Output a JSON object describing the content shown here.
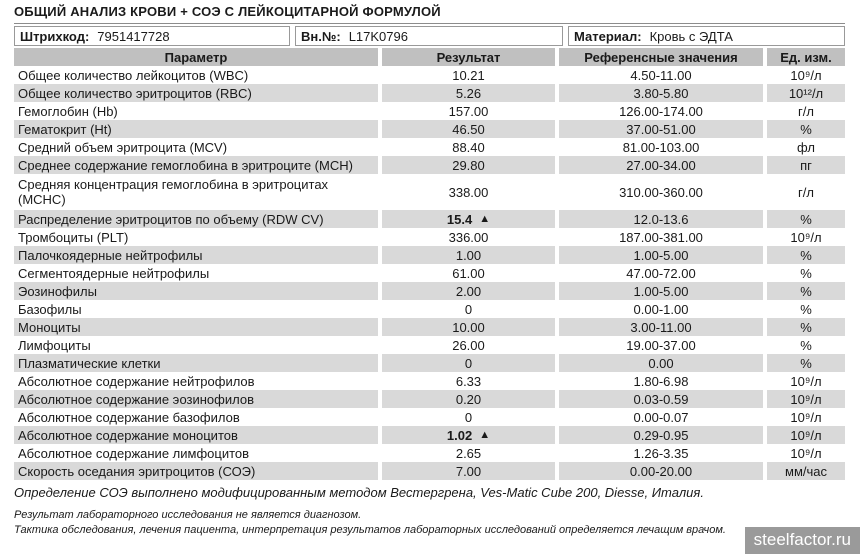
{
  "title": "ОБЩИЙ АНАЛИЗ КРОВИ + СОЭ С ЛЕЙКОЦИТАРНОЙ ФОРМУЛОЙ",
  "info": {
    "barcode_label": "Штрихкод:",
    "barcode_value": "7951417728",
    "internal_number_label": "Вн.№:",
    "internal_number_value": "L17K0796",
    "material_label": "Материал:",
    "material_value": "Кровь с ЭДТА"
  },
  "table": {
    "headers": [
      "Параметр",
      "Результат",
      "Референсные значения",
      "Ед. изм."
    ],
    "rows": [
      {
        "param": "Общее количество лейкоцитов (WBC)",
        "result": "10.21",
        "flag": "",
        "ref": "4.50-11.00",
        "unit": "10⁹/л"
      },
      {
        "param": "Общее количество эритроцитов (RBC)",
        "result": "5.26",
        "flag": "",
        "ref": "3.80-5.80",
        "unit": "10¹²/л"
      },
      {
        "param": "Гемоглобин (Hb)",
        "result": "157.00",
        "flag": "",
        "ref": "126.00-174.00",
        "unit": "г/л"
      },
      {
        "param": "Гематокрит (Ht)",
        "result": "46.50",
        "flag": "",
        "ref": "37.00-51.00",
        "unit": "%"
      },
      {
        "param": "Средний объем эритроцита (MCV)",
        "result": "88.40",
        "flag": "",
        "ref": "81.00-103.00",
        "unit": "фл"
      },
      {
        "param": "Среднее содержание гемоглобина в эритроците (MCH)",
        "result": "29.80",
        "flag": "",
        "ref": "27.00-34.00",
        "unit": "пг"
      },
      {
        "param": "Средняя концентрация гемоглобина в эритроцитах\n(MCHC)",
        "result": "338.00",
        "flag": "",
        "ref": "310.00-360.00",
        "unit": "г/л",
        "tall": true
      },
      {
        "param": "Распределение эритроцитов по объему (RDW CV)",
        "result": "15.4",
        "flag": "▲",
        "ref": "12.0-13.6",
        "unit": "%"
      },
      {
        "param": "Тромбоциты (PLT)",
        "result": "336.00",
        "flag": "",
        "ref": "187.00-381.00",
        "unit": "10⁹/л"
      },
      {
        "param": "Палочкоядерные нейтрофилы",
        "result": "1.00",
        "flag": "",
        "ref": "1.00-5.00",
        "unit": "%"
      },
      {
        "param": "Сегментоядерные нейтрофилы",
        "result": "61.00",
        "flag": "",
        "ref": "47.00-72.00",
        "unit": "%"
      },
      {
        "param": "Эозинофилы",
        "result": "2.00",
        "flag": "",
        "ref": "1.00-5.00",
        "unit": "%"
      },
      {
        "param": "Базофилы",
        "result": "0",
        "flag": "",
        "ref": "0.00-1.00",
        "unit": "%"
      },
      {
        "param": "Моноциты",
        "result": "10.00",
        "flag": "",
        "ref": "3.00-11.00",
        "unit": "%"
      },
      {
        "param": "Лимфоциты",
        "result": "26.00",
        "flag": "",
        "ref": "19.00-37.00",
        "unit": "%"
      },
      {
        "param": "Плазматические клетки",
        "result": "0",
        "flag": "",
        "ref": "0.00",
        "unit": "%"
      },
      {
        "param": "Абсолютное содержание нейтрофилов",
        "result": "6.33",
        "flag": "",
        "ref": "1.80-6.98",
        "unit": "10⁹/л"
      },
      {
        "param": "Абсолютное содержание эозинофилов",
        "result": "0.20",
        "flag": "",
        "ref": "0.03-0.59",
        "unit": "10⁹/л"
      },
      {
        "param": "Абсолютное содержание базофилов",
        "result": "0",
        "flag": "",
        "ref": "0.00-0.07",
        "unit": "10⁹/л"
      },
      {
        "param": "Абсолютное содержание моноцитов",
        "result": "1.02",
        "flag": "▲",
        "ref": "0.29-0.95",
        "unit": "10⁹/л"
      },
      {
        "param": "Абсолютное содержание лимфоцитов",
        "result": "2.65",
        "flag": "",
        "ref": "1.26-3.35",
        "unit": "10⁹/л"
      },
      {
        "param": "Скорость оседания эритроцитов (СОЭ)",
        "result": "7.00",
        "flag": "",
        "ref": "0.00-20.00",
        "unit": "мм/час"
      }
    ]
  },
  "footer": {
    "method_note": "Определение СОЭ выполнено модифицированным методом Вестергрена, Ves-Matic Cube 200, Diesse, Италия.",
    "disclaimer1": "Результат лабораторного исследования не является диагнозом.",
    "disclaimer2": "Тактика обследования, лечения пациента, интерпретация результатов лабораторных исследований определяется лечащим врачом."
  },
  "watermark": "steelfactor.ru",
  "colors": {
    "header_bg": "#c0c0c0",
    "stripe_bg": "#d9d9d9",
    "border_gray": "#999999",
    "watermark_bg": "#9a9a9a"
  }
}
